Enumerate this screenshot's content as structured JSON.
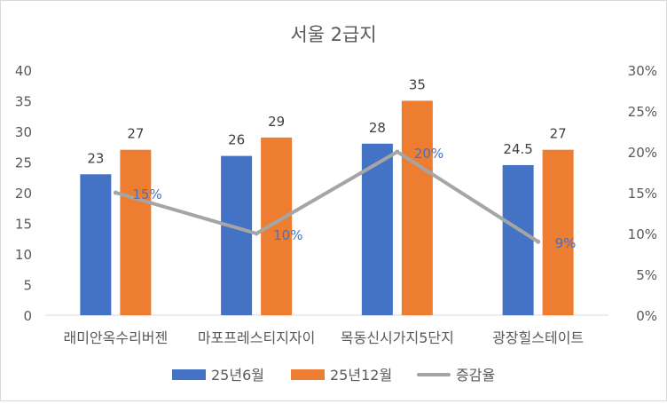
{
  "chart_data": {
    "type": "bar",
    "title": "서울 2급지",
    "categories": [
      "래미안옥수리버젠",
      "마포프레스티지자이",
      "목동신시가지5단지",
      "광장힐스테이트"
    ],
    "series": [
      {
        "name": "25년6월",
        "values": [
          23,
          26,
          28,
          24.5
        ],
        "labels": [
          "23",
          "26",
          "28",
          "24.5"
        ],
        "color": "#4472C4",
        "axis": "left"
      },
      {
        "name": "25년12월",
        "values": [
          27,
          29,
          35,
          27
        ],
        "labels": [
          "27",
          "29",
          "35",
          "27"
        ],
        "color": "#ED7D31",
        "axis": "left"
      }
    ],
    "line_series": {
      "name": "증감율",
      "type": "line",
      "axis": "right",
      "values": [
        15,
        10,
        20,
        9
      ],
      "labels": [
        "15%",
        "10%",
        "20%",
        "9%"
      ],
      "color": "#A5A5A5",
      "label_color": "#4472C4"
    },
    "y_left": {
      "min": 0,
      "max": 40,
      "step": 5,
      "ticks": [
        "0",
        "5",
        "10",
        "15",
        "20",
        "25",
        "30",
        "35",
        "40"
      ]
    },
    "y_right": {
      "min": 0,
      "max": 30,
      "step": 5,
      "ticks": [
        "0%",
        "5%",
        "10%",
        "15%",
        "20%",
        "25%",
        "30%"
      ]
    },
    "legend_position": "bottom",
    "grid": false
  }
}
